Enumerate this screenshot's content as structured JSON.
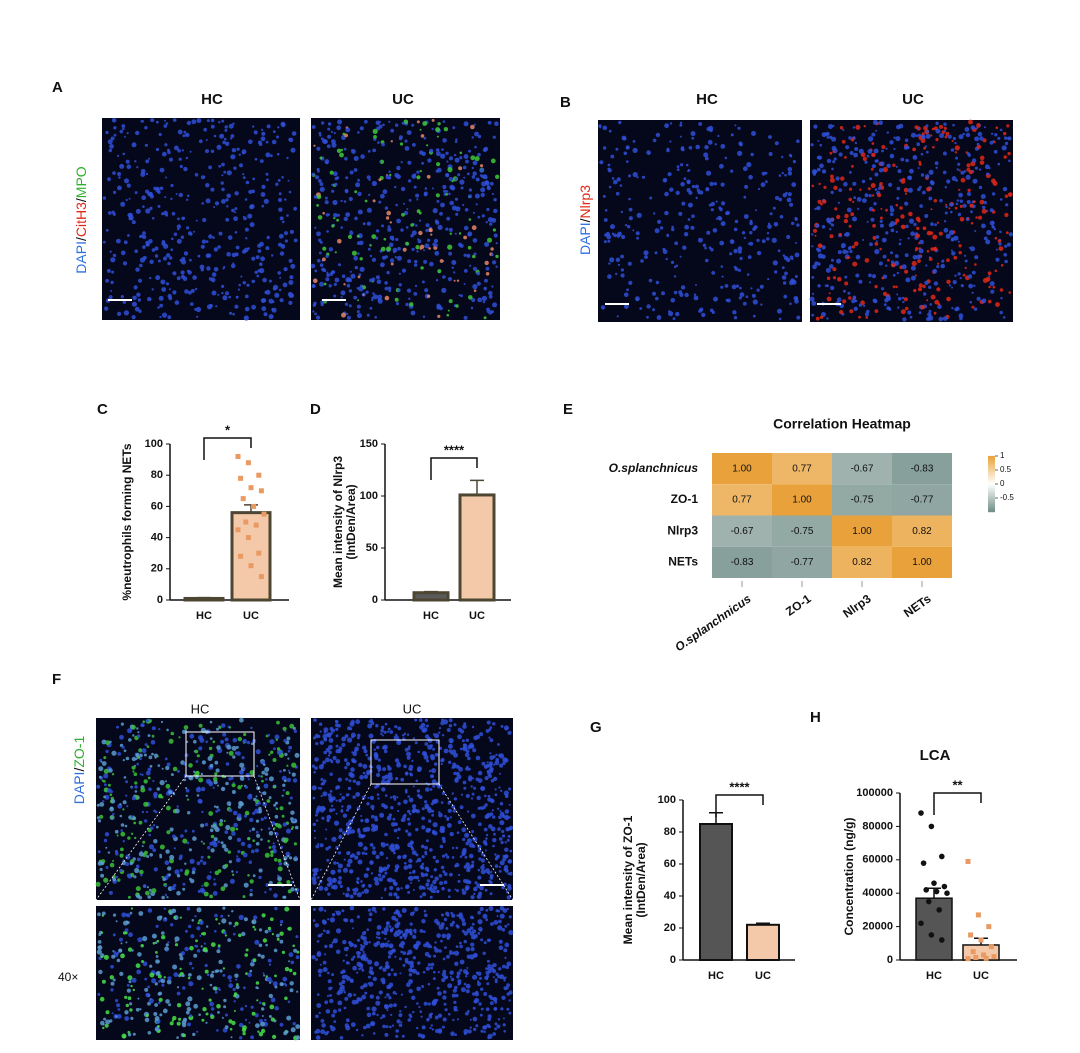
{
  "figure": {
    "A": {
      "letter": "A",
      "labels": [
        "HC",
        "UC"
      ],
      "stain": [
        "DAPI",
        "/",
        "CitH3",
        "/",
        "MPO"
      ]
    },
    "B": {
      "letter": "B",
      "labels": [
        "HC",
        "UC"
      ],
      "stain": [
        "DAPI",
        "/",
        "Nlrp3"
      ]
    },
    "C": {
      "letter": "C"
    },
    "D": {
      "letter": "D"
    },
    "E": {
      "letter": "E"
    },
    "F": {
      "letter": "F",
      "labels": [
        "HC",
        "UC"
      ],
      "stain": [
        "DAPI",
        "/",
        "ZO-1"
      ],
      "magnification": "40×"
    },
    "G": {
      "letter": "G"
    },
    "H": {
      "letter": "H"
    }
  },
  "chart_data": [
    {
      "type": "bar",
      "ylabel": "%neutrophils forming NETs",
      "categories": [
        "HC",
        "UC"
      ],
      "values": [
        1,
        56
      ],
      "errors": [
        0.5,
        5
      ],
      "colors": [
        "#5a5a5a",
        "#f3c9a9"
      ],
      "points": [
        [],
        [
          92,
          88,
          80,
          78,
          72,
          70,
          65,
          60,
          55,
          50,
          48,
          45,
          40,
          30,
          28,
          22,
          15
        ]
      ],
      "point_colors": [
        "#333333",
        "#e89a62"
      ],
      "significance": "*",
      "ylim": [
        0,
        100
      ],
      "yticks": [
        0,
        20,
        40,
        60,
        80,
        100
      ]
    },
    {
      "type": "bar",
      "ylabel": [
        "Mean intensity of Nlrp3",
        "(IntDen/Area)"
      ],
      "categories": [
        "HC",
        "UC"
      ],
      "values": [
        7,
        101
      ],
      "errors": [
        1,
        14
      ],
      "colors": [
        "#5a5a5a",
        "#f3c9a9"
      ],
      "significance": "****",
      "ylim": [
        0,
        150
      ],
      "yticks": [
        0,
        50,
        100,
        150
      ]
    },
    {
      "type": "heatmap",
      "title": "Correlation Heatmap",
      "rows": [
        "O.splanchnicus",
        "ZO-1",
        "Nlrp3",
        "NETs"
      ],
      "cols": [
        "O.splanchnicus",
        "ZO-1",
        "Nlrp3",
        "NETs"
      ],
      "values": [
        [
          1,
          0.77,
          -0.67,
          -0.83
        ],
        [
          0.77,
          1,
          -0.75,
          -0.77
        ],
        [
          -0.67,
          -0.75,
          1,
          0.82
        ],
        [
          -0.83,
          -0.77,
          0.82,
          1
        ]
      ],
      "value_labels": [
        [
          "1.00",
          "0.77",
          "-0.67",
          "-0.83"
        ],
        [
          "0.77",
          "1.00",
          "-0.75",
          "-0.77"
        ],
        [
          "-0.67",
          "-0.75",
          "1.00",
          "0.82"
        ],
        [
          "-0.83",
          "-0.77",
          "0.82",
          "1.00"
        ]
      ],
      "colorscale": [
        "#6f8c86",
        "#ffffff",
        "#e9a23b"
      ],
      "vlim": [
        -1,
        1
      ],
      "colorbar_ticks": [
        1,
        0.5,
        0,
        -0.5
      ]
    },
    {
      "type": "bar",
      "ylabel": [
        "Mean intensity of ZO-1",
        "(IntDen/Area)"
      ],
      "categories": [
        "HC",
        "UC"
      ],
      "values": [
        85,
        22
      ],
      "errors": [
        7,
        1
      ],
      "colors": [
        "#555555",
        "#f3c9a9"
      ],
      "significance": "****",
      "ylim": [
        0,
        100
      ],
      "yticks": [
        0,
        20,
        40,
        60,
        80,
        100
      ]
    },
    {
      "type": "bar",
      "title": "LCA",
      "ylabel": "Concentration (ng/g)",
      "categories": [
        "HC",
        "UC"
      ],
      "values": [
        37000,
        9000
      ],
      "errors": [
        6000,
        4000
      ],
      "colors": [
        "#555555",
        "#f3c9a9"
      ],
      "points": [
        [
          88000,
          80000,
          62000,
          58000,
          46000,
          44000,
          42000,
          41000,
          40000,
          35000,
          30000,
          22000,
          15000,
          12000
        ],
        [
          59000,
          27000,
          20000,
          15000,
          12000,
          8000,
          5000,
          3000,
          2000,
          1500,
          1000,
          800
        ]
      ],
      "point_colors": [
        "#111111",
        "#e89a62"
      ],
      "significance": "**",
      "ylim": [
        0,
        100000
      ],
      "yticks": [
        0,
        20000,
        40000,
        60000,
        80000,
        100000
      ]
    }
  ]
}
